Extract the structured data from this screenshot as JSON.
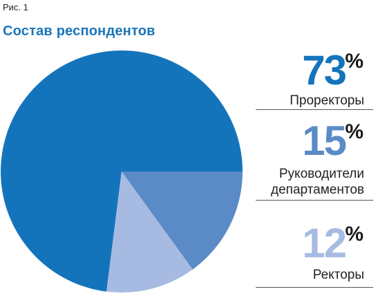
{
  "figure": {
    "label": "Рис. 1",
    "title": "Состав респондентов"
  },
  "colors": {
    "title": "#1a75b9",
    "prorectors": "#1474bb",
    "heads": "#5b8bc6",
    "rectors": "#a7bbe2"
  },
  "stats": [
    {
      "value": "73",
      "unit": "%",
      "label": "Проректоры"
    },
    {
      "value": "15",
      "unit": "%",
      "label": "Руководители департаментов"
    },
    {
      "value": "12",
      "unit": "%",
      "label": "Ректоры"
    }
  ],
  "chart_data": {
    "type": "pie",
    "title": "Состав респондентов",
    "categories": [
      "Проректоры",
      "Руководители департаментов",
      "Ректоры"
    ],
    "values": [
      73,
      15,
      12
    ],
    "unit": "%",
    "colors": [
      "#1474bb",
      "#5b8bc6",
      "#a7bbe2"
    ],
    "legend": "right"
  }
}
